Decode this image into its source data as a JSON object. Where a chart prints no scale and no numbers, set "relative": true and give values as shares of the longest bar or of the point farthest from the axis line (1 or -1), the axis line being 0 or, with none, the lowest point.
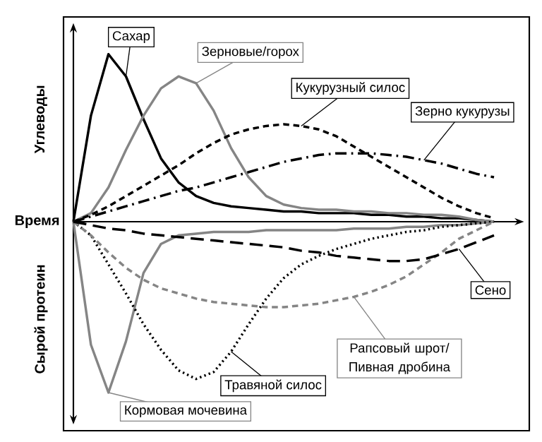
{
  "chart_data": {
    "type": "line",
    "relative": true,
    "xlabel": "Время",
    "ylabel": "Углеводы",
    "annotations": [
      "Сырой протеин"
    ],
    "categories": [
      null,
      null,
      null,
      null,
      null,
      null,
      null,
      null,
      null,
      null,
      null,
      null,
      null,
      null,
      null,
      null,
      null,
      null,
      null,
      null,
      null,
      null,
      null,
      null,
      null
    ],
    "series": [
      {
        "name": "Сахар",
        "color": "#000000",
        "line_style": "solid",
        "values": [
          0,
          0.62,
          0.98,
          0.85,
          0.6,
          0.37,
          0.23,
          0.15,
          0.11,
          0.09,
          0.08,
          0.07,
          0.06,
          0.06,
          0.05,
          0.05,
          0.05,
          0.04,
          0.04,
          0.03,
          0.03,
          0.02,
          0.02,
          0.01,
          0
        ]
      },
      {
        "name": "Зерновые/горох",
        "color": "#858585",
        "line_style": "solid",
        "values": [
          0,
          0.05,
          0.2,
          0.42,
          0.62,
          0.78,
          0.85,
          0.81,
          0.65,
          0.43,
          0.26,
          0.15,
          0.1,
          0.08,
          0.07,
          0.07,
          0.06,
          0.06,
          0.05,
          0.05,
          0.04,
          0.04,
          0.03,
          0.01,
          0
        ]
      },
      {
        "name": "Кукурузный силос",
        "color": "#000000",
        "line_style": "dashed",
        "values": [
          0,
          0.04,
          0.09,
          0.15,
          0.21,
          0.27,
          0.33,
          0.4,
          0.46,
          0.51,
          0.54,
          0.56,
          0.57,
          0.56,
          0.54,
          0.5,
          0.44,
          0.38,
          0.32,
          0.26,
          0.2,
          0.14,
          0.09,
          0.05,
          0.02
        ]
      },
      {
        "name": "Зерно кукурузы",
        "color": "#000000",
        "line_style": "dashdot",
        "values": [
          0,
          0.03,
          0.06,
          0.09,
          0.12,
          0.15,
          0.18,
          0.2,
          0.23,
          0.26,
          0.29,
          0.32,
          0.35,
          0.37,
          0.39,
          0.4,
          0.4,
          0.4,
          0.39,
          0.38,
          0.36,
          0.34,
          0.31,
          0.28,
          0.26
        ]
      },
      {
        "name": "Кормовая мочевина",
        "color": "#858585",
        "line_style": "solid",
        "values": [
          0,
          -0.72,
          -1.0,
          -0.7,
          -0.3,
          -0.13,
          -0.08,
          -0.07,
          -0.06,
          -0.06,
          -0.06,
          -0.05,
          -0.05,
          -0.05,
          -0.05,
          -0.05,
          -0.04,
          -0.04,
          -0.04,
          -0.03,
          -0.03,
          -0.02,
          -0.02,
          -0.01,
          0
        ]
      },
      {
        "name": "Травяной силос",
        "color": "#000000",
        "line_style": "dotted",
        "values": [
          0,
          -0.08,
          -0.25,
          -0.42,
          -0.6,
          -0.75,
          -0.87,
          -0.92,
          -0.88,
          -0.76,
          -0.6,
          -0.45,
          -0.33,
          -0.25,
          -0.2,
          -0.16,
          -0.13,
          -0.1,
          -0.08,
          -0.06,
          -0.05,
          -0.03,
          -0.02,
          -0.01,
          0
        ]
      },
      {
        "name": "Рапсовый шрот/ Пивная дробина",
        "color": "#858585",
        "line_style": "dashed",
        "values": [
          0,
          -0.08,
          -0.18,
          -0.27,
          -0.34,
          -0.39,
          -0.42,
          -0.45,
          -0.47,
          -0.48,
          -0.49,
          -0.5,
          -0.5,
          -0.49,
          -0.48,
          -0.46,
          -0.44,
          -0.41,
          -0.37,
          -0.32,
          -0.25,
          -0.18,
          -0.1,
          -0.05,
          0
        ]
      },
      {
        "name": "Сено",
        "color": "#000000",
        "line_style": "longdashed",
        "values": [
          0,
          -0.02,
          -0.04,
          -0.05,
          -0.07,
          -0.08,
          -0.09,
          -0.1,
          -0.11,
          -0.12,
          -0.13,
          -0.14,
          -0.15,
          -0.17,
          -0.18,
          -0.2,
          -0.21,
          -0.22,
          -0.23,
          -0.23,
          -0.22,
          -0.19,
          -0.16,
          -0.12,
          -0.08
        ]
      }
    ]
  }
}
